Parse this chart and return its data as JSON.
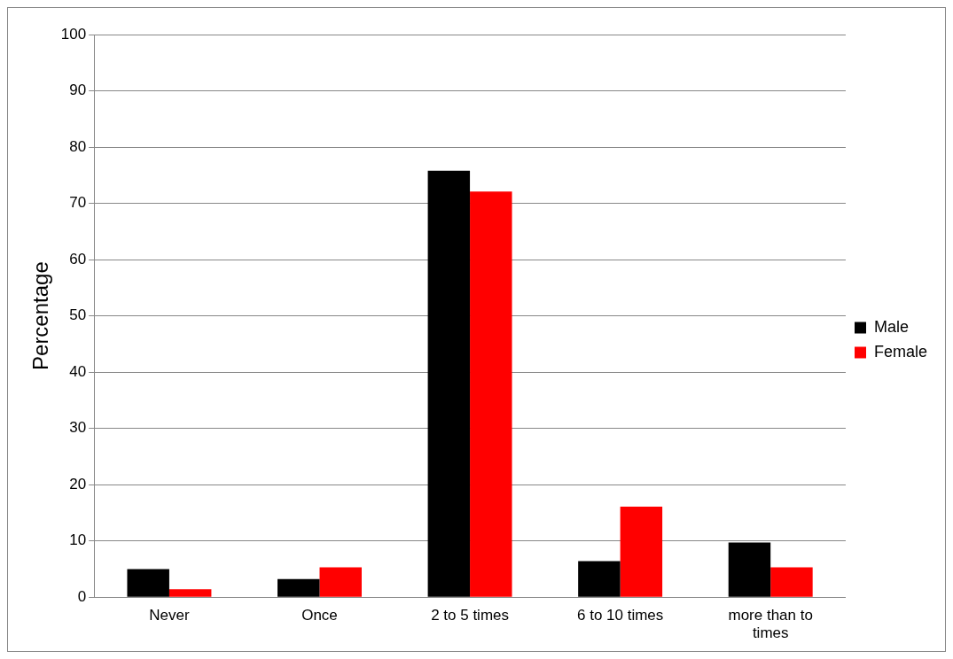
{
  "chart_data": {
    "type": "bar",
    "ylabel": "Percentage",
    "categories": [
      "Never",
      "Once",
      "2 to 5 times",
      "6 to 10 times",
      "more than to times"
    ],
    "series": [
      {
        "name": "Male",
        "color": "#000000",
        "values": [
          5.0,
          3.2,
          75.8,
          6.4,
          9.7
        ]
      },
      {
        "name": "Female",
        "color": "#ff0000",
        "values": [
          1.4,
          5.3,
          72.1,
          16.1,
          5.3
        ]
      }
    ],
    "ylim": [
      0,
      100
    ],
    "yticks": [
      0,
      10,
      20,
      30,
      40,
      50,
      60,
      70,
      80,
      90,
      100
    ],
    "grid": "y",
    "legend": "right"
  }
}
